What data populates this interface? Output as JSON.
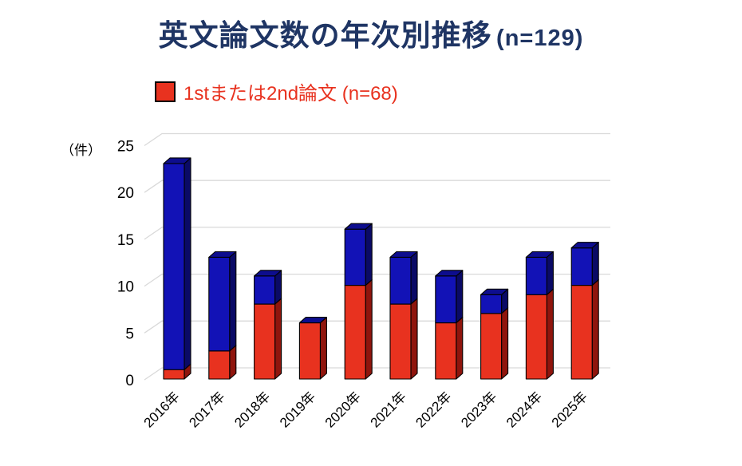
{
  "title": {
    "main": "英文論文数の年次別推移",
    "suffix": "(n=129)",
    "color": "#1f3564"
  },
  "legend": {
    "label": "1stまたは2nd論文 (n=68)",
    "swatch_color": "#e8321f",
    "text_color": "#e8321f"
  },
  "y_axis_unit": "（件）",
  "chart_data": {
    "type": "bar",
    "stacked": true,
    "threeD_effect": true,
    "title": "英文論文数の年次別推移 (n=129)",
    "categories": [
      "2016年",
      "2017年",
      "2018年",
      "2019年",
      "2020年",
      "2021年",
      "2022年",
      "2023年",
      "2024年",
      "2025年"
    ],
    "series": [
      {
        "label": "1stまたは2nd論文 (n=68)",
        "position": "bottom",
        "color": "#e8321f",
        "side_color": "#8f150d",
        "values": [
          1,
          3,
          8,
          6,
          10,
          8,
          6,
          7,
          9,
          10
        ]
      },
      {
        "label": "",
        "position": "top",
        "color": "#1212b6",
        "side_color": "#0a0a66",
        "top_color": "#0d0d8e",
        "values": [
          22,
          10,
          3,
          0,
          6,
          5,
          5,
          2,
          4,
          4
        ]
      }
    ],
    "totals": [
      23,
      13,
      11,
      6,
      16,
      13,
      11,
      9,
      13,
      14
    ],
    "grand_total": 129,
    "ylabel": "（件）",
    "ylim": [
      0,
      25
    ],
    "y_ticks": [
      0,
      5,
      10,
      15,
      20,
      25
    ],
    "grid": true,
    "gridline_color": "#d9d9d9",
    "tick_label_color": "#000000",
    "legend_position": "top-left"
  }
}
